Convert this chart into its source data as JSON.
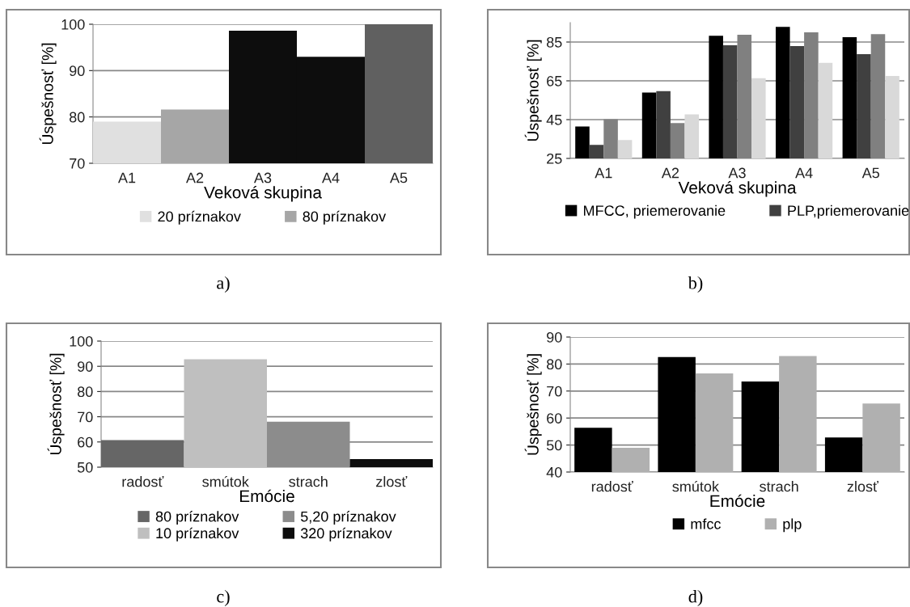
{
  "chart_data": [
    {
      "type": "bar",
      "xlabel": "Veková skupina",
      "ylabel": "Úspešnosť [%]",
      "categories": [
        "A1",
        "A2",
        "A3",
        "A4",
        "A5"
      ],
      "series": [
        {
          "name": "20 príznakov",
          "color": "#e0e0e0",
          "values": [
            79,
            null,
            null,
            null,
            null
          ]
        },
        {
          "name": "80 príznakov",
          "color": "#a6a6a6",
          "values": [
            null,
            81.6,
            null,
            null,
            null
          ]
        },
        {
          "color": "#0d0d0d",
          "values": [
            null,
            null,
            98.6,
            93,
            null
          ]
        },
        {
          "color": "#606060",
          "values": [
            null,
            null,
            null,
            null,
            100
          ]
        }
      ],
      "ylim": [
        70,
        100
      ],
      "yticks": [
        70,
        80,
        90,
        100
      ],
      "grid": "y",
      "legend": "bottom",
      "annotations": [
        "a)"
      ]
    },
    {
      "type": "bar",
      "xlabel": "Veková skupina",
      "ylabel": "Úspešnosť [%]",
      "categories": [
        "A1",
        "A2",
        "A3",
        "A4",
        "A5"
      ],
      "series": [
        {
          "name": "MFCC, priemerovanie",
          "color": "#000000",
          "values": [
            41.5,
            59,
            88.2,
            92.8,
            87.5
          ]
        },
        {
          "name": "PLP,priemerovanie",
          "color": "#404040",
          "values": [
            32,
            59.7,
            83.3,
            82.9,
            78.8
          ]
        },
        {
          "color": "#808080",
          "values": [
            45.2,
            43.2,
            88.7,
            90,
            89.1
          ]
        },
        {
          "color": "#d9d9d9",
          "values": [
            34.5,
            47.7,
            66.4,
            74.3,
            67.5
          ]
        }
      ],
      "ylim": [
        25,
        95
      ],
      "yticks": [
        25,
        45,
        65,
        85
      ],
      "grid": "y",
      "legend": "bottom",
      "annotations": [
        "b)"
      ]
    },
    {
      "type": "bar",
      "xlabel": "Emócie",
      "ylabel": "Úspešnosť [%]",
      "categories": [
        "radosť",
        "smútok",
        "strach",
        "zlosť"
      ],
      "series": [
        {
          "name": "80 príznakov",
          "color": "#666666",
          "values": [
            60.7,
            null,
            null,
            null
          ]
        },
        {
          "name": "10 príznakov",
          "color": "#bfbfbf",
          "values": [
            null,
            92.8,
            null,
            null
          ]
        },
        {
          "name": "5,20 príznakov",
          "color": "#8c8c8c",
          "values": [
            null,
            null,
            68,
            null
          ]
        },
        {
          "name": "320 príznakov",
          "color": "#0d0d0d",
          "values": [
            null,
            null,
            null,
            53.2
          ]
        }
      ],
      "ylim": [
        50,
        100
      ],
      "yticks": [
        50,
        60,
        70,
        80,
        90,
        100
      ],
      "grid": "y",
      "legend": "bottom",
      "annotations": [
        "c)"
      ]
    },
    {
      "type": "bar",
      "xlabel": "Emócie",
      "ylabel": "Úspešnosť [%]",
      "categories": [
        "radosť",
        "smútok",
        "strach",
        "zlosť"
      ],
      "series": [
        {
          "name": "mfcc",
          "color": "#000000",
          "values": [
            56.4,
            82.6,
            73.5,
            52.8
          ]
        },
        {
          "name": "plp",
          "color": "#b0b0b0",
          "values": [
            49,
            76.5,
            83,
            65.4
          ]
        }
      ],
      "ylim": [
        40,
        90
      ],
      "yticks": [
        40,
        50,
        60,
        70,
        80,
        90
      ],
      "grid": "y",
      "legend": "bottom",
      "annotations": [
        "d)"
      ]
    }
  ]
}
